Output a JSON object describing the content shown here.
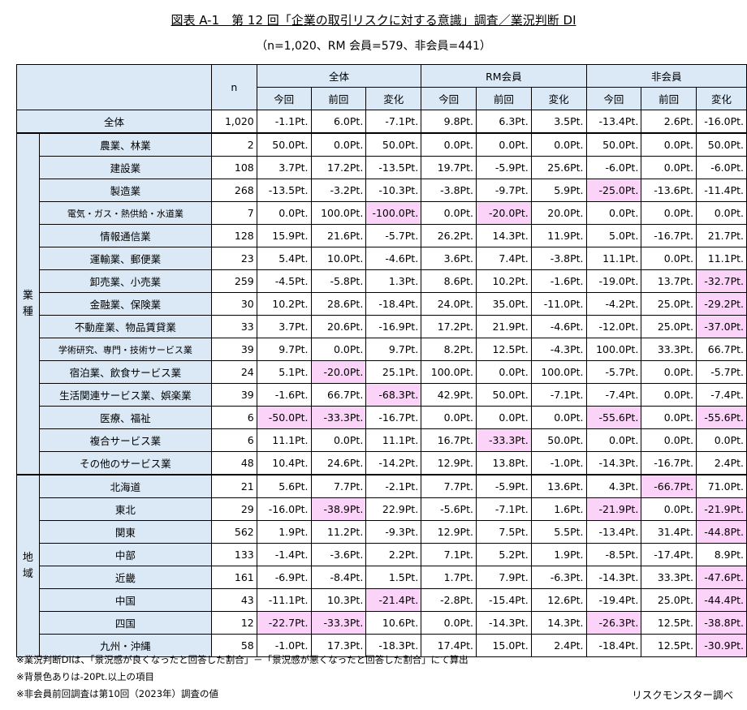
{
  "title": "図表 A-1　第 12 回「企業の取引リスクに対する意識」調査／業況判断 DI",
  "subtitle": "（n=1,020、RM 会員=579、非会員=441）",
  "chart_data": {
    "type": "table",
    "header": {
      "n_label": "n",
      "groups": [
        "全体",
        "RM会員",
        "非会員"
      ],
      "subcolumns": [
        "今回",
        "前回",
        "変化"
      ]
    },
    "highlight_threshold": -20,
    "total_row": {
      "label": "全体",
      "n": "1,020",
      "values": [
        "-1.1Pt.",
        "6.0Pt.",
        "-7.1Pt.",
        "9.8Pt.",
        "6.3Pt.",
        "3.5Pt.",
        "-13.4Pt.",
        "2.6Pt.",
        "-16.0Pt."
      ]
    },
    "sections": [
      {
        "label": [
          "業",
          "種"
        ],
        "rows": [
          {
            "label": "農業、林業",
            "n": "2",
            "values": [
              "50.0Pt.",
              "0.0Pt.",
              "50.0Pt.",
              "0.0Pt.",
              "0.0Pt.",
              "0.0Pt.",
              "50.0Pt.",
              "0.0Pt.",
              "50.0Pt."
            ]
          },
          {
            "label": "建設業",
            "n": "108",
            "values": [
              "3.7Pt.",
              "17.2Pt.",
              "-13.5Pt.",
              "19.7Pt.",
              "-5.9Pt.",
              "25.6Pt.",
              "-6.0Pt.",
              "0.0Pt.",
              "-6.0Pt."
            ]
          },
          {
            "label": "製造業",
            "n": "268",
            "values": [
              "-13.5Pt.",
              "-3.2Pt.",
              "-10.3Pt.",
              "-3.8Pt.",
              "-9.7Pt.",
              "5.9Pt.",
              "-25.0Pt.",
              "-13.6Pt.",
              "-11.4Pt."
            ]
          },
          {
            "label": "電気・ガス・熱供給・水道業",
            "small": true,
            "n": "7",
            "values": [
              "0.0Pt.",
              "100.0Pt.",
              "-100.0Pt.",
              "0.0Pt.",
              "-20.0Pt.",
              "20.0Pt.",
              "0.0Pt.",
              "0.0Pt.",
              "0.0Pt."
            ]
          },
          {
            "label": "情報通信業",
            "n": "128",
            "values": [
              "15.9Pt.",
              "21.6Pt.",
              "-5.7Pt.",
              "26.2Pt.",
              "14.3Pt.",
              "11.9Pt.",
              "5.0Pt.",
              "-16.7Pt.",
              "21.7Pt."
            ]
          },
          {
            "label": "運輸業、郵便業",
            "n": "23",
            "values": [
              "5.4Pt.",
              "10.0Pt.",
              "-4.6Pt.",
              "3.6Pt.",
              "7.4Pt.",
              "-3.8Pt.",
              "11.1Pt.",
              "0.0Pt.",
              "11.1Pt."
            ]
          },
          {
            "label": "卸売業、小売業",
            "n": "259",
            "values": [
              "-4.5Pt.",
              "-5.8Pt.",
              "1.3Pt.",
              "8.6Pt.",
              "10.2Pt.",
              "-1.6Pt.",
              "-19.0Pt.",
              "13.7Pt.",
              "-32.7Pt."
            ]
          },
          {
            "label": "金融業、保険業",
            "n": "30",
            "values": [
              "10.2Pt.",
              "28.6Pt.",
              "-18.4Pt.",
              "24.0Pt.",
              "35.0Pt.",
              "-11.0Pt.",
              "-4.2Pt.",
              "25.0Pt.",
              "-29.2Pt."
            ]
          },
          {
            "label": "不動産業、物品賃貸業",
            "n": "33",
            "values": [
              "3.7Pt.",
              "20.6Pt.",
              "-16.9Pt.",
              "17.2Pt.",
              "21.9Pt.",
              "-4.6Pt.",
              "-12.0Pt.",
              "25.0Pt.",
              "-37.0Pt."
            ]
          },
          {
            "label": "学術研究、専門・技術サービス業",
            "small": true,
            "n": "39",
            "values": [
              "9.7Pt.",
              "0.0Pt.",
              "9.7Pt.",
              "8.2Pt.",
              "12.5Pt.",
              "-4.3Pt.",
              "100.0Pt.",
              "33.3Pt.",
              "66.7Pt."
            ]
          },
          {
            "label": "宿泊業、飲食サービス業",
            "n": "24",
            "values": [
              "5.1Pt.",
              "-20.0Pt.",
              "25.1Pt.",
              "100.0Pt.",
              "0.0Pt.",
              "100.0Pt.",
              "-5.7Pt.",
              "0.0Pt.",
              "-5.7Pt."
            ]
          },
          {
            "label": "生活関連サービス業、娯楽業",
            "n": "39",
            "values": [
              "-1.6Pt.",
              "66.7Pt.",
              "-68.3Pt.",
              "42.9Pt.",
              "50.0Pt.",
              "-7.1Pt.",
              "-7.4Pt.",
              "0.0Pt.",
              "-7.4Pt."
            ]
          },
          {
            "label": "医療、福祉",
            "n": "6",
            "values": [
              "-50.0Pt.",
              "-33.3Pt.",
              "-16.7Pt.",
              "0.0Pt.",
              "0.0Pt.",
              "0.0Pt.",
              "-55.6Pt.",
              "0.0Pt.",
              "-55.6Pt."
            ]
          },
          {
            "label": "複合サービス業",
            "n": "6",
            "values": [
              "11.1Pt.",
              "0.0Pt.",
              "11.1Pt.",
              "16.7Pt.",
              "-33.3Pt.",
              "50.0Pt.",
              "0.0Pt.",
              "0.0Pt.",
              "0.0Pt."
            ]
          },
          {
            "label": "その他のサービス業",
            "n": "48",
            "values": [
              "10.4Pt.",
              "24.6Pt.",
              "-14.2Pt.",
              "12.9Pt.",
              "13.8Pt.",
              "-1.0Pt.",
              "-14.3Pt.",
              "-16.7Pt.",
              "2.4Pt."
            ]
          }
        ]
      },
      {
        "label": [
          "地",
          "域"
        ],
        "rows": [
          {
            "label": "北海道",
            "n": "21",
            "values": [
              "5.6Pt.",
              "7.7Pt.",
              "-2.1Pt.",
              "7.7Pt.",
              "-5.9Pt.",
              "13.6Pt.",
              "4.3Pt.",
              "-66.7Pt.",
              "71.0Pt."
            ]
          },
          {
            "label": "東北",
            "n": "29",
            "values": [
              "-16.0Pt.",
              "-38.9Pt.",
              "22.9Pt.",
              "-5.6Pt.",
              "-7.1Pt.",
              "1.6Pt.",
              "-21.9Pt.",
              "0.0Pt.",
              "-21.9Pt."
            ]
          },
          {
            "label": "関東",
            "n": "562",
            "values": [
              "1.9Pt.",
              "11.2Pt.",
              "-9.3Pt.",
              "12.9Pt.",
              "7.5Pt.",
              "5.5Pt.",
              "-13.4Pt.",
              "31.4Pt.",
              "-44.8Pt."
            ]
          },
          {
            "label": "中部",
            "n": "133",
            "values": [
              "-1.4Pt.",
              "-3.6Pt.",
              "2.2Pt.",
              "7.1Pt.",
              "5.2Pt.",
              "1.9Pt.",
              "-8.5Pt.",
              "-17.4Pt.",
              "8.9Pt."
            ]
          },
          {
            "label": "近畿",
            "n": "161",
            "values": [
              "-6.9Pt.",
              "-8.4Pt.",
              "1.5Pt.",
              "1.7Pt.",
              "7.9Pt.",
              "-6.3Pt.",
              "-14.3Pt.",
              "33.3Pt.",
              "-47.6Pt."
            ]
          },
          {
            "label": "中国",
            "n": "43",
            "values": [
              "-11.1Pt.",
              "10.3Pt.",
              "-21.4Pt.",
              "-2.8Pt.",
              "-15.4Pt.",
              "12.6Pt.",
              "-19.4Pt.",
              "25.0Pt.",
              "-44.4Pt."
            ]
          },
          {
            "label": "四国",
            "n": "12",
            "values": [
              "-22.7Pt.",
              "-33.3Pt.",
              "10.6Pt.",
              "0.0Pt.",
              "-14.3Pt.",
              "14.3Pt.",
              "-26.3Pt.",
              "12.5Pt.",
              "-38.8Pt."
            ]
          },
          {
            "label": "九州・沖縄",
            "n": "58",
            "values": [
              "-1.0Pt.",
              "17.3Pt.",
              "-18.3Pt.",
              "17.4Pt.",
              "15.0Pt.",
              "2.4Pt.",
              "-18.4Pt.",
              "12.5Pt.",
              "-30.9Pt."
            ]
          }
        ]
      }
    ]
  },
  "notes": [
    "※業況判断DIは、「景況感が良くなったと回答した割合」－「景況感が悪くなったと回答した割合」にて算出",
    "※背景色ありは-20Pt.以上の項目",
    "※非会員前回調査は第10回（2023年）調査の値"
  ],
  "credit": "リスクモンスター調べ",
  "colors": {
    "header_bg": "#dbe9f6",
    "highlight_bg": "#fbd3f8"
  }
}
